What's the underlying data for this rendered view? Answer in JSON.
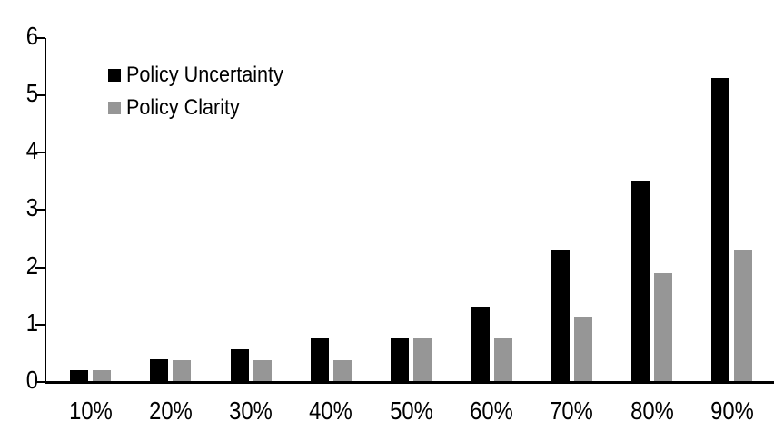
{
  "chart_data": {
    "type": "bar",
    "title": "",
    "xlabel": "",
    "ylabel": "",
    "categories": [
      "10%",
      "20%",
      "30%",
      "40%",
      "50%",
      "60%",
      "70%",
      "80%",
      "90%"
    ],
    "series": [
      {
        "name": "Policy Uncertainty",
        "color": "#000000",
        "values": [
          0.2,
          0.4,
          0.57,
          0.76,
          0.78,
          1.32,
          2.3,
          3.5,
          5.3
        ]
      },
      {
        "name": "Policy Clarity",
        "color": "#969696",
        "values": [
          0.2,
          0.38,
          0.38,
          0.38,
          0.77,
          0.76,
          1.14,
          1.9,
          2.3
        ]
      }
    ],
    "ylim": [
      0,
      6
    ],
    "y_ticks": [
      "0",
      "1",
      "2",
      "3",
      "4",
      "5",
      "6"
    ],
    "grid": false,
    "legend_position": "inside-top-left",
    "axis_color": "#000000",
    "background_color": "#ffffff"
  },
  "legend": {
    "items": [
      {
        "label": "Policy Uncertainty",
        "color": "#000000"
      },
      {
        "label": "Policy Clarity",
        "color": "#969696"
      }
    ]
  }
}
